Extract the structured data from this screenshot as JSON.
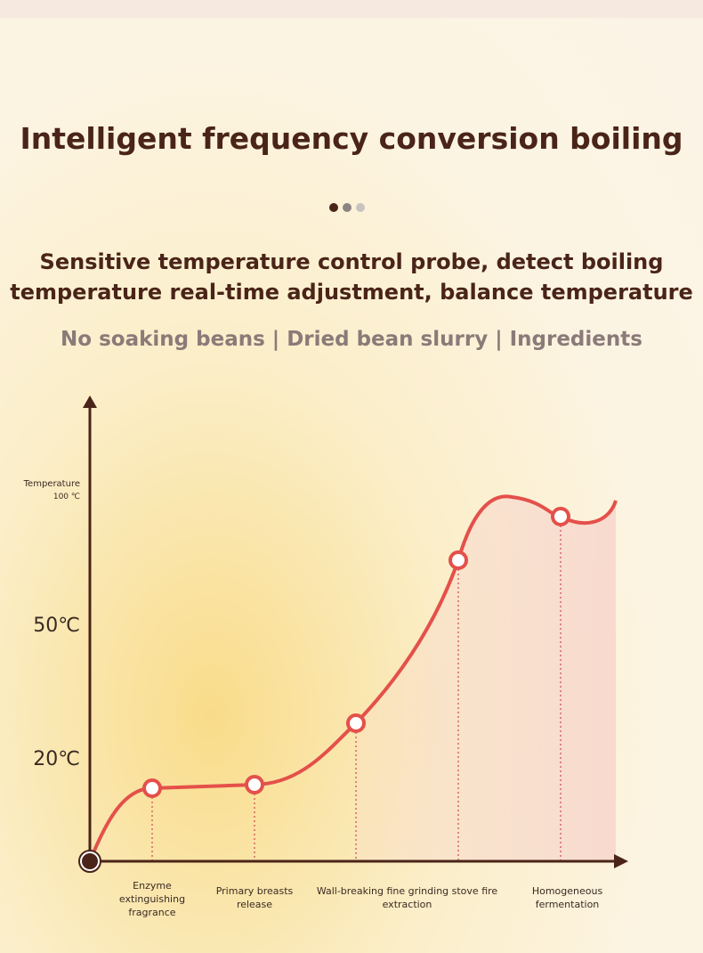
{
  "header": {
    "title": "Intelligent frequency conversion boiling",
    "subtitle_lines": [
      "Sensitive temperature control probe, detect boiling",
      "temperature real-time adjustment, balance temperature"
    ],
    "tagline": "No soaking beans | Dried bean slurry | Ingredients"
  },
  "diagram": {
    "axis_title": "Temperature",
    "temperature_labels": [
      "100 ℃",
      "50℃",
      "20℃"
    ],
    "stages": [
      "Enzyme extinguishing fragrance",
      "Primary breasts release",
      "Wall-breaking fine grinding stove fire extraction",
      "Homogeneous fermentation"
    ]
  }
}
